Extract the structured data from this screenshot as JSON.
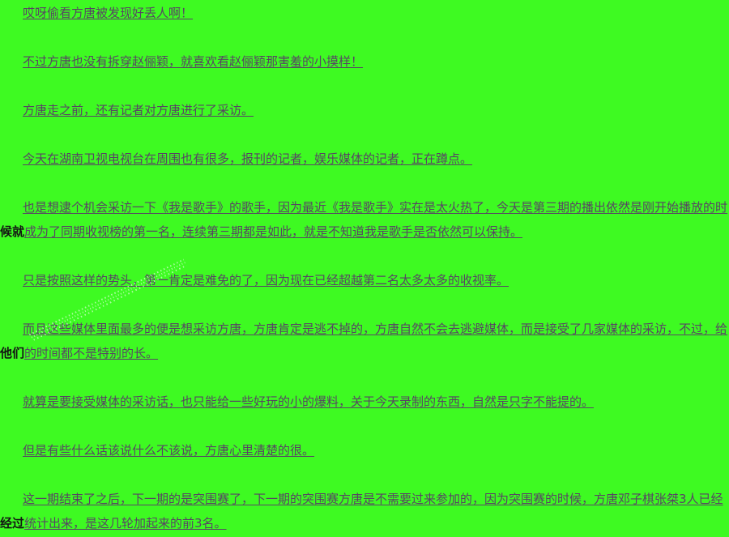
{
  "page": {
    "background_color": "#3EFA22",
    "text_color": "#584464",
    "overflow_text_color": "#141414",
    "watermark_color": "rgba(255,255,255,0.75)"
  },
  "content": {
    "paragraphs": [
      {
        "runs": [
          {
            "style": "u",
            "text": "哎呀偷看方唐被发现好丢人啊！"
          }
        ]
      },
      {
        "runs": [
          {
            "style": "u",
            "text": "不过方唐也没有拆穿赵俪颖，就喜欢看赵俪颖那害羞的小摸样！"
          }
        ]
      },
      {
        "runs": [
          {
            "style": "u",
            "text": "方唐走之前，还有记者对方唐进行了采访。"
          }
        ]
      },
      {
        "runs": [
          {
            "style": "u",
            "text": "今天在湖南卫视电视台在周围也有很多，报刊的记者，娱乐媒体的记者，正在蹲点。"
          }
        ]
      },
      {
        "runs": [
          {
            "style": "u",
            "text": "也是想逮个机会采访一下《我是歌手》的歌手，因为最近《我是歌手》实在是太火热了，今天是第三期的播出依然是刚开始播放的时"
          },
          {
            "style": "b",
            "text": "候就"
          },
          {
            "style": "u",
            "text": "成为了同期收视榜的第一名，连续第三期都是如此，就是不知道我是歌手是否依然可以保持。"
          }
        ]
      },
      {
        "runs": [
          {
            "style": "u",
            "text": "只是按照这样的势头，第一肯定是难免的了，因为现在已经超越第二名太多太多的收视率。"
          }
        ]
      },
      {
        "runs": [
          {
            "style": "u",
            "text": "而且这些媒体里面最多的便是想采访方唐，方唐肯定是逃不掉的，方唐自然不会去逃避媒体，而是接受了几家媒体的采访，不过，给"
          },
          {
            "style": "b",
            "text": "他们"
          },
          {
            "style": "u",
            "text": "的时间都不是特别的长。"
          }
        ]
      },
      {
        "runs": [
          {
            "style": "u",
            "text": "就算是要接受媒体的采访话，也只能给一些好玩的小的爆料，关于今天录制的东西，自然是只字不能提的。"
          }
        ]
      },
      {
        "runs": [
          {
            "style": "u",
            "text": "但是有些什么话该说什么不该说，方唐心里清楚的很。"
          }
        ]
      },
      {
        "runs": [
          {
            "style": "u",
            "text": "这一期结束了之后，下一期的是突围赛了，下一期的突围赛方唐是不需要过来参加的，因为突围赛的时候，方唐邓子棋张桀3人已经"
          },
          {
            "style": "b",
            "text": "经过"
          },
          {
            "style": "u",
            "text": "统计出来，是这几轮加起来的前3名。"
          }
        ]
      }
    ]
  }
}
